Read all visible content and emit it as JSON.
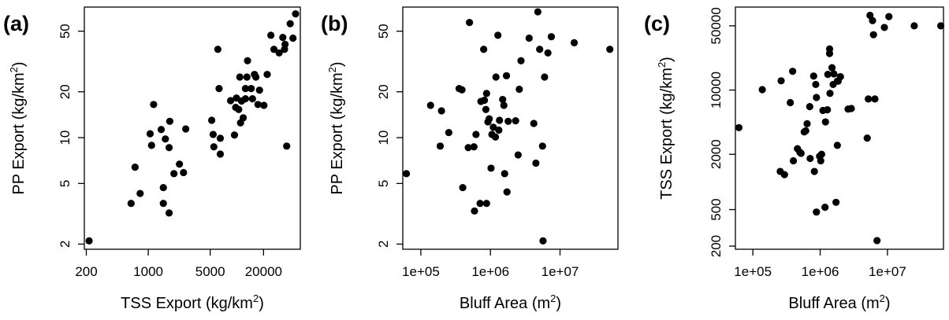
{
  "chart_data": [
    {
      "type": "scatter",
      "panel_label": "(a)",
      "xlabel": {
        "main": "TSS Export (kg/km",
        "sup": "2",
        "tail": ")"
      },
      "ylabel": {
        "main": "PP Export (kg/km",
        "sup": "2",
        "tail": ")"
      },
      "xscale": "log",
      "yscale": "log",
      "xlim": [
        190,
        52000
      ],
      "ylim": [
        1.85,
        72
      ],
      "xticks": [
        {
          "v": 200,
          "label": "200"
        },
        {
          "v": 1000,
          "label": "1000"
        },
        {
          "v": 5000,
          "label": "5000"
        },
        {
          "v": 20000,
          "label": "20000"
        }
      ],
      "yticks": [
        {
          "v": 2,
          "label": "2"
        },
        {
          "v": 5,
          "label": "5"
        },
        {
          "v": 10,
          "label": "10"
        },
        {
          "v": 20,
          "label": "20"
        },
        {
          "v": 50,
          "label": "50"
        }
      ],
      "points": [
        [
          215,
          2.1
        ],
        [
          640,
          3.7
        ],
        [
          710,
          6.4
        ],
        [
          810,
          4.3
        ],
        [
          1050,
          10.6
        ],
        [
          1090,
          8.9
        ],
        [
          1150,
          16.5
        ],
        [
          1400,
          11.3
        ],
        [
          1480,
          4.7
        ],
        [
          1480,
          3.7
        ],
        [
          1560,
          9.8
        ],
        [
          1720,
          3.2
        ],
        [
          1720,
          8.6
        ],
        [
          1750,
          12.8
        ],
        [
          1950,
          5.8
        ],
        [
          2250,
          6.7
        ],
        [
          2500,
          5.9
        ],
        [
          2650,
          11.4
        ],
        [
          5200,
          13.0
        ],
        [
          5400,
          10.5
        ],
        [
          5500,
          8.7
        ],
        [
          6100,
          38.0
        ],
        [
          6300,
          21.0
        ],
        [
          6500,
          9.9
        ],
        [
          6500,
          7.8
        ],
        [
          8500,
          17.5
        ],
        [
          9400,
          10.4
        ],
        [
          9700,
          15.8
        ],
        [
          9900,
          18.2
        ],
        [
          10500,
          15.3
        ],
        [
          10800,
          25.0
        ],
        [
          11000,
          12.5
        ],
        [
          11300,
          17.4
        ],
        [
          11800,
          13.5
        ],
        [
          12500,
          21.0
        ],
        [
          12500,
          18.0
        ],
        [
          13000,
          25.0
        ],
        [
          13200,
          32.0
        ],
        [
          14500,
          21.0
        ],
        [
          15000,
          18.0
        ],
        [
          15800,
          26.0
        ],
        [
          16400,
          25.0
        ],
        [
          17300,
          16.5
        ],
        [
          18000,
          20.5
        ],
        [
          20200,
          16.3
        ],
        [
          22000,
          26.0
        ],
        [
          24200,
          47.0
        ],
        [
          26200,
          38.0
        ],
        [
          30000,
          36.0
        ],
        [
          33000,
          45.5
        ],
        [
          34500,
          38.0
        ],
        [
          35000,
          41.0
        ],
        [
          36500,
          8.8
        ],
        [
          40000,
          56.0
        ],
        [
          43000,
          45.0
        ],
        [
          46000,
          65.0
        ]
      ]
    },
    {
      "type": "scatter",
      "panel_label": "(b)",
      "xlabel": {
        "main": "Bluff Area (m",
        "sup": "2",
        "tail": ")"
      },
      "ylabel": {
        "main": "PP Export (kg/km",
        "sup": "2",
        "tail": ")"
      },
      "xscale": "log",
      "yscale": "log",
      "xlim": [
        55000,
        68000000
      ],
      "ylim": [
        1.85,
        72
      ],
      "xticks": [
        {
          "v": 100000,
          "label": "1e+05"
        },
        {
          "v": 1000000,
          "label": "1e+06"
        },
        {
          "v": 10000000,
          "label": "1e+07"
        }
      ],
      "yticks": [
        {
          "v": 2,
          "label": "2"
        },
        {
          "v": 5,
          "label": "5"
        },
        {
          "v": 10,
          "label": "10"
        },
        {
          "v": 20,
          "label": "20"
        },
        {
          "v": 50,
          "label": "50"
        }
      ],
      "points": [
        [
          62000,
          5.8
        ],
        [
          138000,
          16.3
        ],
        [
          190000,
          8.8
        ],
        [
          198000,
          15.0
        ],
        [
          252000,
          10.8
        ],
        [
          355000,
          21.0
        ],
        [
          390000,
          20.6
        ],
        [
          400000,
          4.7
        ],
        [
          480000,
          8.6
        ],
        [
          500000,
          57.0
        ],
        [
          580000,
          8.7
        ],
        [
          590000,
          3.3
        ],
        [
          620000,
          10.5
        ],
        [
          710000,
          3.7
        ],
        [
          730000,
          17.3
        ],
        [
          800000,
          38.0
        ],
        [
          820000,
          17.6
        ],
        [
          860000,
          15.3
        ],
        [
          880000,
          3.7
        ],
        [
          880000,
          19.5
        ],
        [
          920000,
          12.7
        ],
        [
          960000,
          13.3
        ],
        [
          1020000,
          6.3
        ],
        [
          1050000,
          10.5
        ],
        [
          1100000,
          11.7
        ],
        [
          1180000,
          10.1
        ],
        [
          1200000,
          25.0
        ],
        [
          1280000,
          47.0
        ],
        [
          1320000,
          11.2
        ],
        [
          1350000,
          13.0
        ],
        [
          1500000,
          17.8
        ],
        [
          1560000,
          16.3
        ],
        [
          1600000,
          5.8
        ],
        [
          1700000,
          25.5
        ],
        [
          1730000,
          4.4
        ],
        [
          1800000,
          12.8
        ],
        [
          2300000,
          12.9
        ],
        [
          2500000,
          7.7
        ],
        [
          2600000,
          20.8
        ],
        [
          2750000,
          32.0
        ],
        [
          3600000,
          45.0
        ],
        [
          4200000,
          12.4
        ],
        [
          4500000,
          6.8
        ],
        [
          4800000,
          67.0
        ],
        [
          5100000,
          38.0
        ],
        [
          5600000,
          8.8
        ],
        [
          5700000,
          2.1
        ],
        [
          6000000,
          25.0
        ],
        [
          6700000,
          36.0
        ],
        [
          7500000,
          46.0
        ],
        [
          16000000,
          42.0
        ],
        [
          52000000,
          38.0
        ]
      ]
    },
    {
      "type": "scatter",
      "panel_label": "(c)",
      "xlabel": {
        "main": "Bluff Area (m",
        "sup": "2",
        "tail": ")"
      },
      "ylabel": {
        "main": "TSS Export (kg/km",
        "sup": "2",
        "tail": ")"
      },
      "xscale": "log",
      "yscale": "log",
      "xlim": [
        55000,
        68000000
      ],
      "ylim": [
        185,
        80000
      ],
      "xticks": [
        {
          "v": 100000,
          "label": "1e+05"
        },
        {
          "v": 1000000,
          "label": "1e+06"
        },
        {
          "v": 10000000,
          "label": "1e+07"
        }
      ],
      "yticks": [
        {
          "v": 200,
          "label": "200"
        },
        {
          "v": 500,
          "label": "500"
        },
        {
          "v": 2000,
          "label": "2000"
        },
        {
          "v": 10000,
          "label": "10000"
        },
        {
          "v": 50000,
          "label": "50000"
        }
      ],
      "points": [
        [
          62000,
          3900
        ],
        [
          138000,
          10100
        ],
        [
          255000,
          1300
        ],
        [
          263000,
          12600
        ],
        [
          295000,
          1200
        ],
        [
          360000,
          7300
        ],
        [
          390000,
          16000
        ],
        [
          400000,
          1700
        ],
        [
          460000,
          2300
        ],
        [
          500000,
          2100
        ],
        [
          520000,
          2050
        ],
        [
          580000,
          3500
        ],
        [
          610000,
          3600
        ],
        [
          640000,
          4300
        ],
        [
          700000,
          6600
        ],
        [
          710000,
          1800
        ],
        [
          800000,
          14200
        ],
        [
          820000,
          1300
        ],
        [
          860000,
          11500
        ],
        [
          880000,
          8300
        ],
        [
          880000,
          470
        ],
        [
          980000,
          1900
        ],
        [
          1020000,
          1700
        ],
        [
          1050000,
          2000
        ],
        [
          1100000,
          6000
        ],
        [
          1180000,
          530
        ],
        [
          1200000,
          4500
        ],
        [
          1280000,
          6100
        ],
        [
          1300000,
          14800
        ],
        [
          1380000,
          25000
        ],
        [
          1380000,
          28000
        ],
        [
          1400000,
          9200
        ],
        [
          1500000,
          17500
        ],
        [
          1560000,
          11500
        ],
        [
          1600000,
          15000
        ],
        [
          1720000,
          600
        ],
        [
          1800000,
          12500
        ],
        [
          1800000,
          2500
        ],
        [
          1850000,
          12500
        ],
        [
          2000000,
          14000
        ],
        [
          2600000,
          6200
        ],
        [
          2900000,
          6300
        ],
        [
          5000000,
          3000
        ],
        [
          5200000,
          8000
        ],
        [
          5500000,
          65000
        ],
        [
          6000000,
          57000
        ],
        [
          6200000,
          40000
        ],
        [
          6500000,
          8000
        ],
        [
          7000000,
          230
        ],
        [
          9000000,
          48000
        ],
        [
          10500000,
          63000
        ],
        [
          25000000,
          50000
        ],
        [
          62000000,
          50000
        ]
      ]
    }
  ]
}
